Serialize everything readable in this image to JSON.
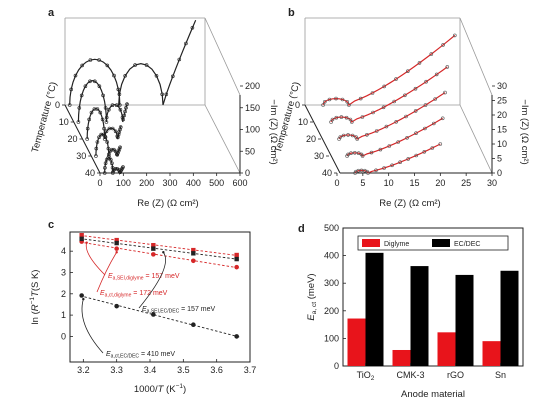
{
  "chart_data": [
    {
      "panel": "a",
      "type": "line",
      "x_label": "Re (Z) (Ω cm²)",
      "y_label": "Temperature (°C)",
      "z_label": "−Im (Z) (Ω cm²)",
      "x_ticks": [
        "0",
        "100",
        "200",
        "300",
        "400",
        "500",
        "600"
      ],
      "y_ticks": [
        "0",
        "10",
        "20",
        "30",
        "40"
      ],
      "z_ticks": [
        "0",
        "50",
        "100",
        "150",
        "200"
      ],
      "x_range": [
        0,
        600
      ],
      "z_range": [
        0,
        200
      ],
      "series": [
        {
          "temperature": 0,
          "arc1": [
            20,
            235,
            105
          ],
          "arc2": [
            230,
            420,
            95
          ],
          "tail_end": [
            560,
            195
          ]
        },
        {
          "temperature": 10,
          "arc1": [
            20,
            140,
            95
          ],
          "arc2": [
            140,
            210,
            40
          ],
          "tail_end": [
            230,
            45
          ]
        },
        {
          "temperature": 20,
          "arc1": [
            20,
            95,
            70
          ],
          "arc2": [
            95,
            150,
            25
          ],
          "tail_end": [
            165,
            30
          ]
        },
        {
          "temperature": 30,
          "arc1": [
            20,
            75,
            50
          ],
          "arc2": [
            75,
            110,
            15
          ],
          "tail_end": [
            125,
            22
          ]
        },
        {
          "temperature": 40,
          "arc1": [
            20,
            55,
            35
          ],
          "arc2": [
            55,
            85,
            10
          ],
          "tail_end": [
            100,
            15
          ]
        }
      ]
    },
    {
      "panel": "b",
      "type": "line",
      "x_label": "Re (Z) (Ω cm²)",
      "y_label": "Temperature (°C)",
      "z_label": "−Im (Z) (Ω cm²)",
      "x_ticks": [
        "0",
        "5",
        "10",
        "15",
        "20",
        "25",
        "30"
      ],
      "y_ticks": [
        "0",
        "10",
        "20",
        "30",
        "40"
      ],
      "z_ticks": [
        "0",
        "5",
        "10",
        "15",
        "20",
        "25",
        "30"
      ],
      "x_range": [
        0,
        30
      ],
      "z_range": [
        0,
        30
      ],
      "series": [
        {
          "temperature": 0,
          "arc_start": 3.5,
          "arc_end": 8.5,
          "arc_height": 2.2,
          "tail_end": [
            29,
            24
          ]
        },
        {
          "temperature": 10,
          "arc_start": 3.5,
          "arc_end": 7.5,
          "arc_height": 1.7,
          "tail_end": [
            26,
            19
          ]
        },
        {
          "temperature": 20,
          "arc_start": 3.5,
          "arc_end": 7,
          "arc_height": 1.4,
          "tail_end": [
            24,
            16
          ]
        },
        {
          "temperature": 30,
          "arc_start": 3.5,
          "arc_end": 6.5,
          "arc_height": 1.1,
          "tail_end": [
            22,
            13
          ]
        },
        {
          "temperature": 40,
          "arc_start": 3.5,
          "arc_end": 6,
          "arc_height": 0.9,
          "tail_end": [
            20,
            10
          ]
        }
      ]
    },
    {
      "panel": "c",
      "type": "scatter",
      "x_label_parts": [
        "1000/",
        "T",
        " (K",
        "−1",
        ")"
      ],
      "y_label_parts": [
        "ln (",
        "R",
        "−1",
        "T",
        "(S K)"
      ],
      "x_range": [
        3.16,
        3.7
      ],
      "y_range": [
        -1.2,
        4.9
      ],
      "x_ticks": [
        3.2,
        3.3,
        3.4,
        3.5,
        3.6,
        3.7
      ],
      "y_ticks": [
        0,
        1,
        2,
        3,
        4
      ],
      "x_tick_labels": [
        "3.2",
        "3.3",
        "3.4",
        "3.5",
        "3.6",
        "3.7"
      ],
      "y_tick_labels": [
        "0",
        "1",
        "2",
        "3",
        "4"
      ],
      "x": [
        3.195,
        3.3,
        3.41,
        3.53,
        3.66
      ],
      "series": [
        {
          "name": "SEI, diglyme",
          "color": "#d62728",
          "marker": "square",
          "values": [
            4.75,
            4.52,
            4.28,
            4.05,
            3.82
          ]
        },
        {
          "name": "ct, diglyme",
          "color": "#d62728",
          "marker": "circle",
          "values": [
            4.45,
            4.12,
            3.85,
            3.55,
            3.25
          ]
        },
        {
          "name": "SEI, EC/DEC",
          "color": "#222222",
          "marker": "square",
          "values": [
            4.58,
            4.38,
            4.12,
            3.9,
            3.63
          ]
        },
        {
          "name": "ct, EC/DEC",
          "color": "#222222",
          "marker": "circle",
          "values": [
            1.92,
            1.42,
            1.03,
            0.55,
            0.0
          ]
        }
      ],
      "annotations": [
        {
          "text_parts": [
            "E",
            "a,SEI,diglyme",
            " = 157 meV"
          ],
          "color": "#d62728"
        },
        {
          "text_parts": [
            "E",
            "a,ct,diglyme",
            " = 172 meV"
          ],
          "color": "#d62728"
        },
        {
          "text_parts": [
            "E",
            "a,SEI,EC/DEC",
            " = 157 meV"
          ],
          "color": "#222222"
        },
        {
          "text_parts": [
            "E",
            "a,ct,EC/DEC",
            " = 410 meV"
          ],
          "color": "#222222"
        }
      ]
    },
    {
      "panel": "d",
      "type": "bar",
      "categories": [
        "TiO2",
        "CMK-3",
        "rGO",
        "Sn"
      ],
      "category_labels": [
        [
          "TiO",
          "2"
        ],
        [
          "CMK-3",
          ""
        ],
        [
          "rGO",
          ""
        ],
        [
          "Sn",
          ""
        ]
      ],
      "xlabel": "Anode material",
      "ylabel_parts": [
        "E",
        "a, ct",
        " (meV)"
      ],
      "ylim": [
        0,
        500
      ],
      "y_ticks": [
        0,
        100,
        200,
        300,
        400,
        500
      ],
      "y_tick_labels": [
        "0",
        "100",
        "200",
        "300",
        "400",
        "500"
      ],
      "series": [
        {
          "name": "Diglyme",
          "color": "#e8141b",
          "values": [
            172,
            58,
            122,
            90
          ]
        },
        {
          "name": "EC/DEC",
          "color": "#000000",
          "values": [
            410,
            362,
            330,
            345
          ]
        }
      ],
      "legend": "top"
    }
  ]
}
